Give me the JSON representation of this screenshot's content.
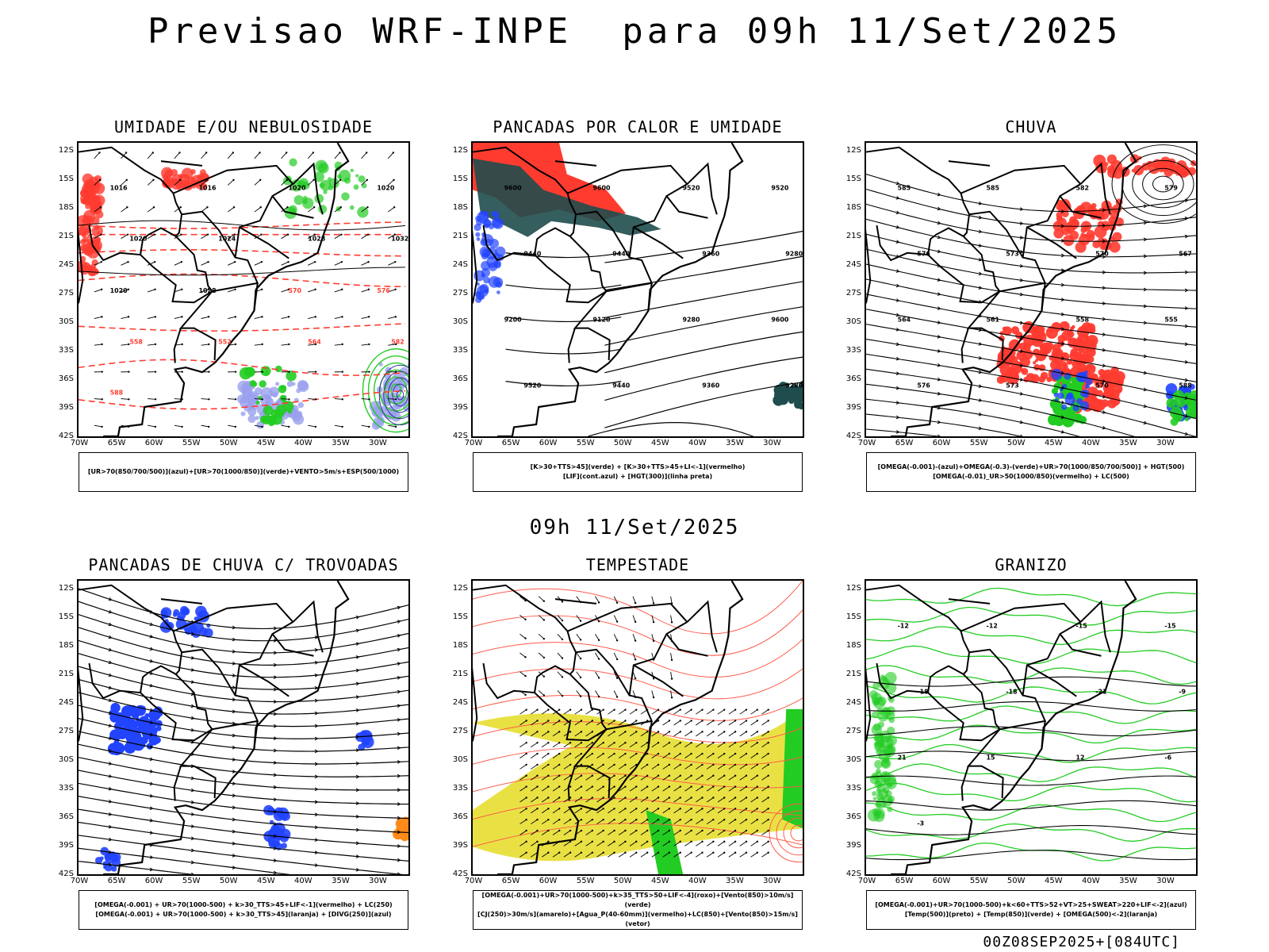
{
  "page": {
    "title": "Previsao WRF-INPE  para 09h 11/Set/2025",
    "subtitle": "09h 11/Set/2025",
    "footer": "00Z08SEP2025+[084UTC]"
  },
  "colors": {
    "black": "#000000",
    "red": "#ff3b30",
    "green": "#22cc22",
    "blue": "#2244ff",
    "lavender": "#9aa0ee",
    "darkteal": "#1f4d4d",
    "yellow": "#e8df3a",
    "orange": "#ff8a1a",
    "pink": "#ff5a4a"
  },
  "axes": {
    "lat_ticks": [
      "12S",
      "15S",
      "18S",
      "21S",
      "24S",
      "27S",
      "30S",
      "33S",
      "36S",
      "39S",
      "42S"
    ],
    "lon_ticks": [
      "70W",
      "65W",
      "60W",
      "55W",
      "50W",
      "45W",
      "40W",
      "35W",
      "30W"
    ]
  },
  "panels": [
    {
      "id": "umidade",
      "title": "UMIDADE E/OU NEBULOSIDADE",
      "legend": [
        "[UR>70(850/700/500)](azul)+[UR>70(1000/850)](verde)+VENTO>5m/s+ESP(500/1000)"
      ],
      "labels": [
        "1016",
        "1016",
        "1020",
        "1020",
        "1020",
        "1024",
        "1028",
        "1032",
        "1020",
        "1028",
        "570",
        "576",
        "558",
        "552",
        "564",
        "582",
        "588"
      ]
    },
    {
      "id": "pancadas_calor",
      "title": "PANCADAS POR CALOR E UMIDADE",
      "legend": [
        "[K>30+TTS>45](verde) + [K>30+TTS>45+LI<-1](vermelho)",
        "[LIF](cont.azul) + [HGT(300)](linha preta)"
      ],
      "labels": [
        "9600",
        "9600",
        "9520",
        "9520",
        "9440",
        "9440",
        "9360",
        "9280",
        "9200",
        "9120",
        "9280",
        "9600",
        "9520",
        "9440",
        "9360",
        "9280"
      ]
    },
    {
      "id": "chuva",
      "title": "CHUVA",
      "legend": [
        "[OMEGA(-0.001)-(azul)+OMEGA(-0.3)-(verde)+UR>70(1000/850/700/500)] + HGT(500)",
        "[OMEGA(-0.01)_UR>50(1000/850)(vermelho) + LC(500)"
      ],
      "labels": [
        "585",
        "585",
        "582",
        "579",
        "576",
        "573",
        "570",
        "567",
        "564",
        "561",
        "558",
        "555",
        "576",
        "573",
        "570",
        "588"
      ]
    },
    {
      "id": "pancadas_trovoadas",
      "title": "PANCADAS DE CHUVA C/ TROVOADAS",
      "legend": [
        "[OMEGA(-0.001) + UR>70(1000-500) + k>30_TTS>45+LIF<-1](vermelho) + LC(250)",
        "[OMEGA(-0.001) + UR>70(1000-500) + k>30_TTS>45](laranja) + [DIVG(250)](azul)"
      ],
      "labels": []
    },
    {
      "id": "tempestade",
      "title": "TEMPESTADE",
      "legend": [
        "[OMEGA(-0.001)+UR>70(1000-500)+k>35_TTS>50+LIF<-4](roxo)+[Vento(850)>10m/s](verde)",
        "[CJ(250)>30m/s](amarelo)+[Agua_P(40-60mm)](vermelho)+LC(850)+[Vento(850)>15m/s](vetor)"
      ],
      "labels": []
    },
    {
      "id": "granizo",
      "title": "GRANIZO",
      "legend": [
        "[OMEGA(-0.001)+UR>70(1000-500)+k<60+TTS>52+VT>25+SWEAT>220+LIF<-2](azul)",
        "[Temp(500)](preto) + [Temp(850)](verde) + [OMEGA(500)<-2](laranja)"
      ],
      "labels": [
        "-12",
        "-12",
        "-15",
        "-15",
        "-18",
        "-18",
        "-21",
        "-9",
        "21",
        "15",
        "12",
        "-6",
        "-3"
      ]
    }
  ]
}
